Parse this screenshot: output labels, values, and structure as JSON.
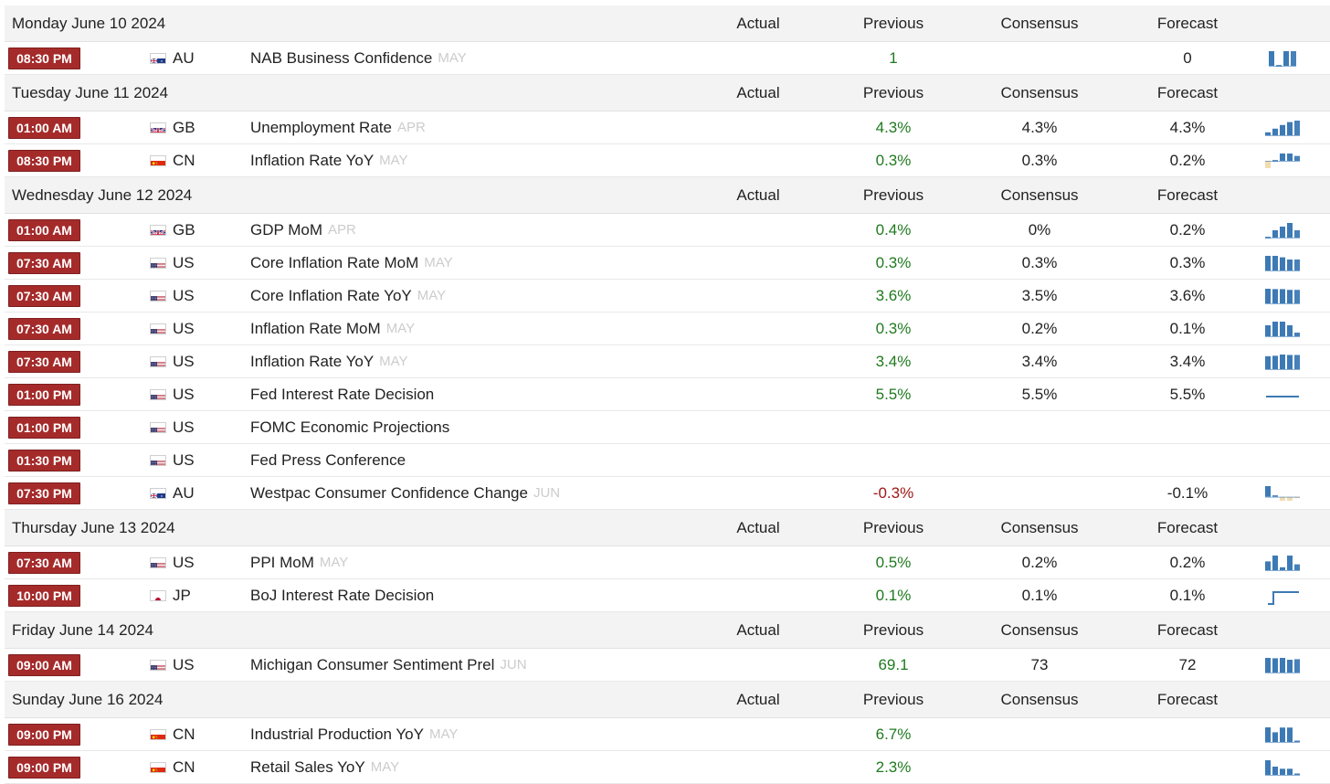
{
  "columns": {
    "actual": "Actual",
    "previous": "Previous",
    "consensus": "Consensus",
    "forecast": "Forecast"
  },
  "colors": {
    "time_badge": "#a52b2b",
    "previous_positive": "#1f7a1f",
    "previous_negative": "#a01818",
    "spark_blue": "#3d7ab5",
    "spark_pale": "#f2dcb0",
    "reference": "#cccccc"
  },
  "days": [
    {
      "date": "Monday June 10 2024",
      "events": [
        {
          "time": "08:30 PM",
          "flag": "flag-au-icon",
          "country": "AU",
          "event": "NAB Business Confidence",
          "ref": "MAY",
          "actual": "",
          "previous": "1",
          "consensus": "",
          "forecast": "0",
          "spark": "bars",
          "spark_values": [
            1,
            0,
            1,
            1
          ]
        }
      ]
    },
    {
      "date": "Tuesday June 11 2024",
      "events": [
        {
          "time": "01:00 AM",
          "flag": "flag-gb-icon",
          "country": "GB",
          "event": "Unemployment Rate",
          "ref": "APR",
          "actual": "",
          "previous": "4.3%",
          "consensus": "4.3%",
          "forecast": "4.3%",
          "spark": "bars",
          "spark_values": [
            0.2,
            0.45,
            0.7,
            0.9,
            1
          ]
        },
        {
          "time": "08:30 PM",
          "flag": "flag-cn-icon",
          "country": "CN",
          "event": "Inflation Rate YoY",
          "ref": "MAY",
          "actual": "",
          "previous": "0.3%",
          "consensus": "0.3%",
          "forecast": "0.2%",
          "spark": "bars",
          "spark_values": [
            -0.3,
            0,
            0.3,
            0.3,
            0.2
          ]
        }
      ]
    },
    {
      "date": "Wednesday June 12 2024",
      "events": [
        {
          "time": "01:00 AM",
          "flag": "flag-gb-icon",
          "country": "GB",
          "event": "GDP MoM",
          "ref": "APR",
          "actual": "",
          "previous": "0.4%",
          "consensus": "0%",
          "forecast": "0.2%",
          "spark": "bars",
          "spark_values": [
            0,
            0.2,
            0.3,
            0.4,
            0.2
          ]
        },
        {
          "time": "07:30 AM",
          "flag": "flag-us-icon",
          "country": "US",
          "event": "Core Inflation Rate MoM",
          "ref": "MAY",
          "actual": "",
          "previous": "0.3%",
          "consensus": "0.3%",
          "forecast": "0.3%",
          "spark": "bars",
          "spark_values": [
            0.4,
            0.4,
            0.36,
            0.3,
            0.3
          ]
        },
        {
          "time": "07:30 AM",
          "flag": "flag-us-icon",
          "country": "US",
          "event": "Core Inflation Rate YoY",
          "ref": "MAY",
          "actual": "",
          "previous": "3.6%",
          "consensus": "3.5%",
          "forecast": "3.6%",
          "spark": "bars",
          "spark_values": [
            3.9,
            3.8,
            3.8,
            3.6,
            3.6
          ]
        },
        {
          "time": "07:30 AM",
          "flag": "flag-us-icon",
          "country": "US",
          "event": "Inflation Rate MoM",
          "ref": "MAY",
          "actual": "",
          "previous": "0.3%",
          "consensus": "0.2%",
          "forecast": "0.1%",
          "spark": "bars",
          "spark_values": [
            0.3,
            0.4,
            0.4,
            0.3,
            0.1
          ]
        },
        {
          "time": "07:30 AM",
          "flag": "flag-us-icon",
          "country": "US",
          "event": "Inflation Rate YoY",
          "ref": "MAY",
          "actual": "",
          "previous": "3.4%",
          "consensus": "3.4%",
          "forecast": "3.4%",
          "spark": "bars",
          "spark_values": [
            3.1,
            3.2,
            3.5,
            3.4,
            3.4
          ]
        },
        {
          "time": "01:00 PM",
          "flag": "flag-us-icon",
          "country": "US",
          "event": "Fed Interest Rate Decision",
          "ref": "",
          "actual": "",
          "previous": "5.5%",
          "consensus": "5.5%",
          "forecast": "5.5%",
          "spark": "flat",
          "spark_values": [
            5.5,
            5.5,
            5.5,
            5.5,
            5.5
          ]
        },
        {
          "time": "01:00 PM",
          "flag": "flag-us-icon",
          "country": "US",
          "event": "FOMC Economic Projections",
          "ref": "",
          "actual": "",
          "previous": "",
          "consensus": "",
          "forecast": "",
          "spark": "none",
          "spark_values": []
        },
        {
          "time": "01:30 PM",
          "flag": "flag-us-icon",
          "country": "US",
          "event": "Fed Press Conference",
          "ref": "",
          "actual": "",
          "previous": "",
          "consensus": "",
          "forecast": "",
          "spark": "none",
          "spark_values": []
        },
        {
          "time": "07:30 PM",
          "flag": "flag-au-icon",
          "country": "AU",
          "event": "Westpac Consumer Confidence Change",
          "ref": "JUN",
          "actual": "",
          "previous": "-0.3%",
          "consensus": "",
          "forecast": "-0.1%",
          "spark": "bars",
          "spark_values": [
            0.8,
            0.05,
            -0.3,
            -0.3,
            -0.1
          ]
        }
      ]
    },
    {
      "date": "Thursday June 13 2024",
      "events": [
        {
          "time": "07:30 AM",
          "flag": "flag-us-icon",
          "country": "US",
          "event": "PPI MoM",
          "ref": "MAY",
          "actual": "",
          "previous": "0.5%",
          "consensus": "0.2%",
          "forecast": "0.2%",
          "spark": "bars",
          "spark_values": [
            0.3,
            0.5,
            0.1,
            0.5,
            0.2
          ]
        },
        {
          "time": "10:00 PM",
          "flag": "flag-jp-icon",
          "country": "JP",
          "event": "BoJ Interest Rate Decision",
          "ref": "",
          "actual": "",
          "previous": "0.1%",
          "consensus": "0.1%",
          "forecast": "0.1%",
          "spark": "step",
          "spark_values": [
            -0.1,
            0.1,
            0.1,
            0.1,
            0.1
          ]
        }
      ]
    },
    {
      "date": "Friday June 14 2024",
      "events": [
        {
          "time": "09:00 AM",
          "flag": "flag-us-icon",
          "country": "US",
          "event": "Michigan Consumer Sentiment Prel",
          "ref": "JUN",
          "actual": "",
          "previous": "69.1",
          "consensus": "73",
          "forecast": "72",
          "spark": "bars",
          "spark_values": [
            79,
            77,
            79,
            69.1,
            72
          ]
        }
      ]
    },
    {
      "date": "Sunday June 16 2024",
      "events": [
        {
          "time": "09:00 PM",
          "flag": "flag-cn-icon",
          "country": "CN",
          "event": "Industrial Production YoY",
          "ref": "MAY",
          "actual": "",
          "previous": "6.7%",
          "consensus": "",
          "forecast": "",
          "spark": "bars",
          "spark_values": [
            6.8,
            4.5,
            6.7,
            6.7,
            0.1
          ]
        },
        {
          "time": "09:00 PM",
          "flag": "flag-cn-icon",
          "country": "CN",
          "event": "Retail Sales YoY",
          "ref": "MAY",
          "actual": "",
          "previous": "2.3%",
          "consensus": "",
          "forecast": "",
          "spark": "bars",
          "spark_values": [
            5.5,
            3.1,
            2.3,
            2.3,
            0.1
          ]
        }
      ]
    }
  ]
}
